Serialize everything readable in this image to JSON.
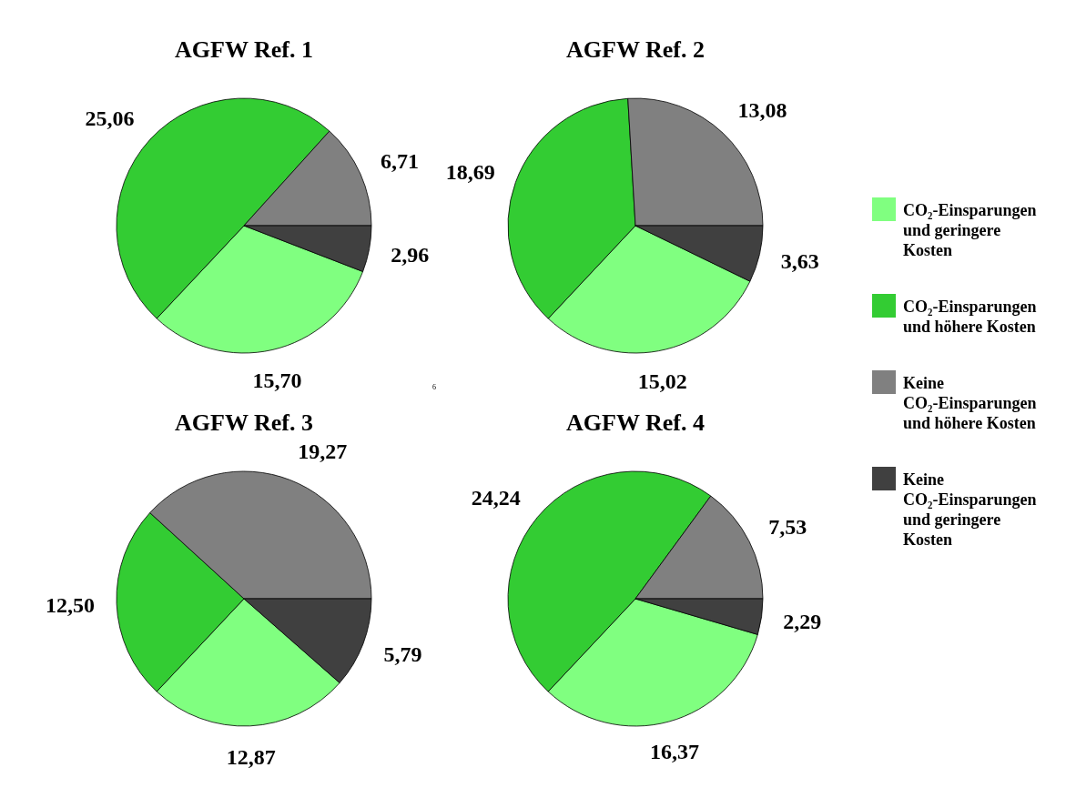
{
  "chart_data": [
    {
      "type": "pie",
      "title": "AGFW Ref. 1",
      "categories": [
        "CO₂-Einsparungen und geringere Kosten",
        "CO₂-Einsparungen und höhere Kosten",
        "Keine CO₂-Einsparungen und höhere Kosten",
        "Keine CO₂-Einsparungen und geringere Kosten"
      ],
      "values": [
        15.7,
        25.06,
        6.71,
        2.96
      ],
      "value_labels": [
        "15,70",
        "25,06",
        "6,71",
        "2,96"
      ],
      "colors": [
        "#80ff80",
        "#33cc33",
        "#808080",
        "#404040"
      ],
      "legend": "right"
    },
    {
      "type": "pie",
      "title": "AGFW Ref. 2",
      "categories": [
        null,
        null,
        null,
        null
      ],
      "values": [
        15.02,
        18.69,
        13.08,
        3.63
      ],
      "value_labels": [
        "15,02",
        "18,69",
        "13,08",
        "3,63"
      ],
      "colors": [
        "#80ff80",
        "#33cc33",
        "#808080",
        "#404040"
      ],
      "annotations": [
        "6"
      ]
    },
    {
      "type": "pie",
      "title": "AGFW Ref. 3",
      "categories": [
        null,
        null,
        null,
        null
      ],
      "values": [
        12.87,
        12.5,
        19.27,
        5.79
      ],
      "value_labels": [
        "12,87",
        "12,50",
        "19,27",
        "5,79"
      ],
      "colors": [
        "#80ff80",
        "#33cc33",
        "#808080",
        "#404040"
      ]
    },
    {
      "type": "pie",
      "title": "AGFW Ref. 4",
      "categories": [
        null,
        null,
        null,
        null
      ],
      "values": [
        16.37,
        24.24,
        7.53,
        2.29
      ],
      "value_labels": [
        "16,37",
        "24,24",
        "7,53",
        "2,29"
      ],
      "colors": [
        "#80ff80",
        "#33cc33",
        "#808080",
        "#404040"
      ]
    }
  ]
}
